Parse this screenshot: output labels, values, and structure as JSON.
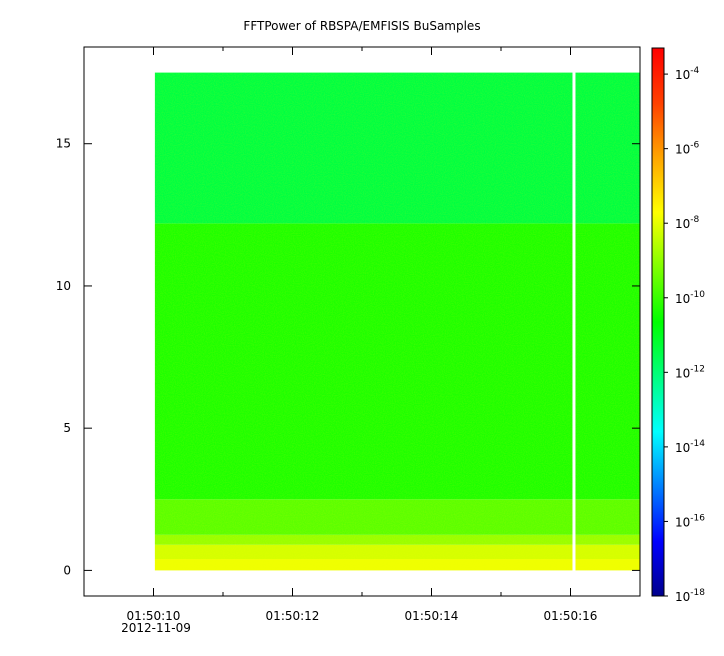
{
  "chart_data": {
    "type": "heatmap",
    "title": "FFTPower of RBSPA/EMFISIS  BuSamples",
    "xlabel": "",
    "ylabel": "",
    "x_ticks": [
      "01:50:10",
      "01:50:12",
      "01:50:14",
      "01:50:16"
    ],
    "x_tick_values": [
      10,
      12,
      14,
      16
    ],
    "x_minor_tick_values": [
      9,
      11,
      13,
      15
    ],
    "x_range": [
      9.0,
      17.0
    ],
    "x_date_label": "2012-11-09",
    "y_ticks": [
      "0",
      "5",
      "10",
      "15"
    ],
    "y_tick_values": [
      0,
      5,
      10,
      15
    ],
    "y_range": [
      -0.9,
      18.4
    ],
    "data_x_range": [
      10.02,
      17.0
    ],
    "data_y_range": [
      0,
      17.5
    ],
    "gap_x": 16.05,
    "bands": [
      {
        "y0": 0.0,
        "y1": 0.4,
        "log_power": -7.9
      },
      {
        "y0": 0.4,
        "y1": 0.9,
        "log_power": -8.2
      },
      {
        "y0": 0.9,
        "y1": 1.25,
        "log_power": -8.9
      },
      {
        "y0": 1.25,
        "y1": 2.5,
        "log_power": -9.6
      },
      {
        "y0": 2.5,
        "y1": 12.2,
        "log_power": -10.3
      },
      {
        "y0": 12.2,
        "y1": 17.5,
        "log_power": -11.4
      }
    ],
    "colorbar": {
      "scale": "log",
      "range_exp": [
        -18,
        -3.3
      ],
      "tick_exps": [
        "-4",
        "-6",
        "-8",
        "-10",
        "-12",
        "-14",
        "-16",
        "-18"
      ],
      "tick_base": "10",
      "colors": [
        "#00008c",
        "#0000ff",
        "#0080ff",
        "#00ffff",
        "#00ff80",
        "#00ff00",
        "#80ff00",
        "#ffff00",
        "#ffa500",
        "#ff4000",
        "#ff0000"
      ]
    },
    "grid": false,
    "legend": "colorbar-right"
  }
}
